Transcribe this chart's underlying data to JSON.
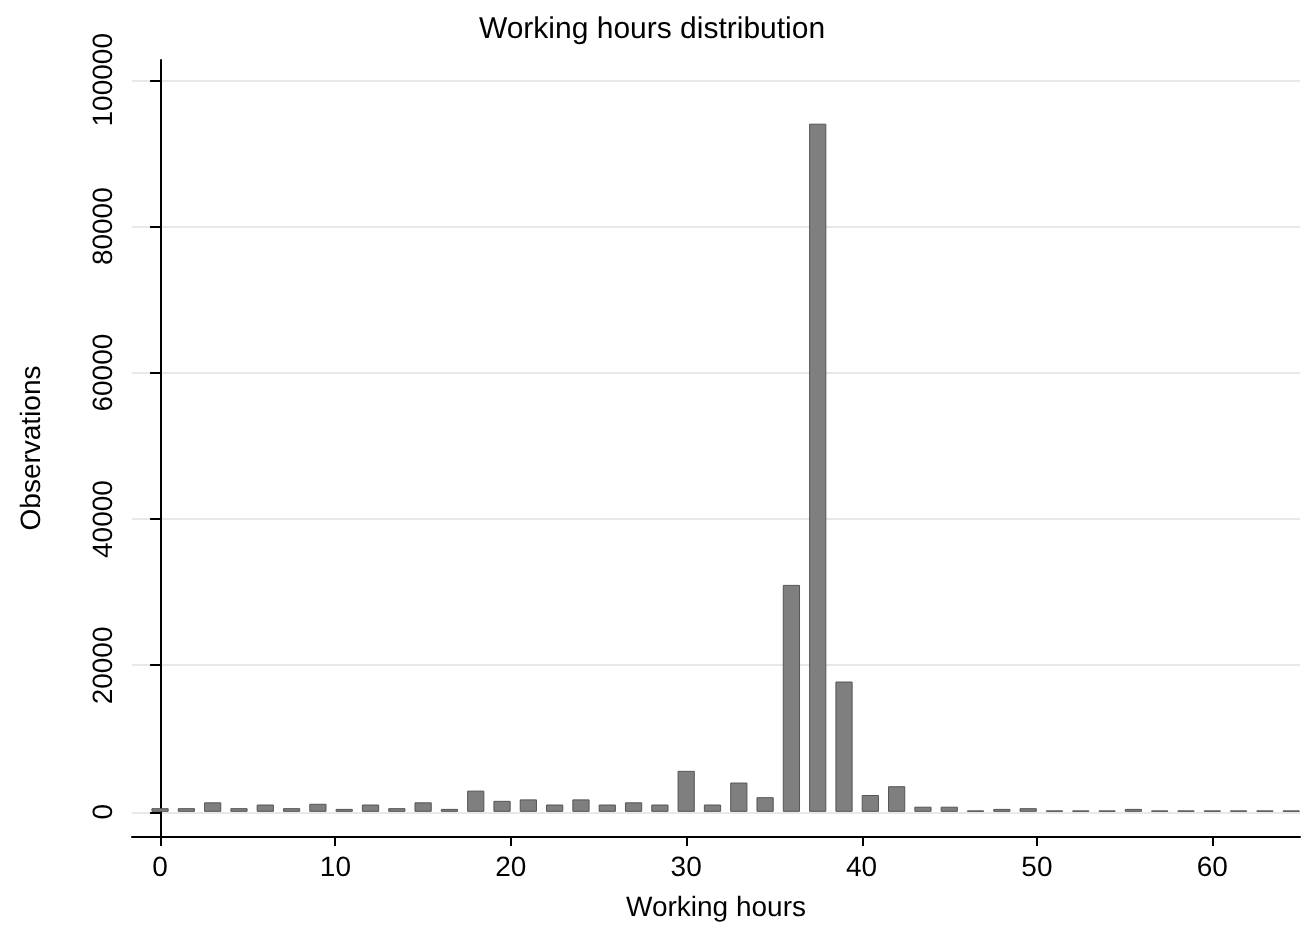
{
  "chart_data": {
    "type": "bar",
    "title": "Working hours distribution",
    "xlabel": "Working hours",
    "ylabel": "Observations",
    "x": [
      0,
      1.5,
      3,
      4.5,
      6,
      7.5,
      9,
      10.5,
      12,
      13.5,
      15,
      16.5,
      18,
      19.5,
      21,
      22.5,
      24,
      25.5,
      27,
      28.5,
      30,
      31.5,
      33,
      34.5,
      36,
      37.5,
      39,
      40.5,
      42,
      43.5,
      45,
      46.5,
      48,
      49.5,
      51,
      52.5,
      54,
      55.5,
      57,
      58.5,
      60,
      61.5,
      63,
      64.5
    ],
    "series": [
      {
        "color": "#7f7f7f",
        "values": [
          500,
          500,
          1300,
          500,
          1000,
          500,
          1100,
          400,
          1000,
          500,
          1300,
          400,
          2900,
          1500,
          1700,
          1000,
          1700,
          1000,
          1300,
          1000,
          5600,
          1000,
          4000,
          2000,
          31000,
          94000,
          17800,
          2300,
          3500,
          700,
          700,
          200,
          400,
          500,
          200,
          200,
          200,
          400,
          200,
          200,
          200,
          200,
          200,
          200
        ]
      }
    ],
    "xlim": [
      -1.6,
      65
    ],
    "xticks": [
      0,
      10,
      20,
      30,
      40,
      50,
      60
    ],
    "ylim": [
      -3300,
      102700
    ],
    "yticks": [
      0,
      20000,
      40000,
      60000,
      80000,
      100000
    ],
    "grid": "y"
  }
}
